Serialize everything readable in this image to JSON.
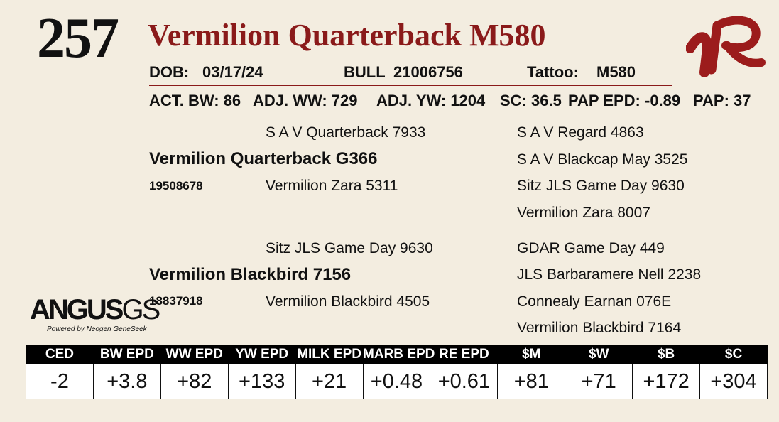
{
  "lot_number": "257",
  "animal_name": "Vermilion Quarterback M580",
  "info_row": {
    "dob_label": "DOB:",
    "dob_value": "03/17/24",
    "bull_label": "BULL",
    "registration": "21006756",
    "tattoo_label": "Tattoo:",
    "tattoo_value": "M580"
  },
  "stats_row": {
    "act_bw": "ACT. BW: 86",
    "adj_ww": "ADJ. WW: 729",
    "adj_yw": "ADJ. YW: 1204",
    "sc": "SC: 36.5",
    "pap_epd": "PAP EPD: -0.89",
    "pap": "PAP: 37"
  },
  "pedigree": {
    "sire": {
      "name": "Vermilion Quarterback G366",
      "reg": "19508678",
      "sire": "S A V Quarterback 7933",
      "dam": "Vermilion Zara 5311",
      "sire_sire": "S A V Regard 4863",
      "sire_dam": "S A V Blackcap May 3525",
      "dam_sire": "Sitz JLS Game Day 9630",
      "dam_dam": "Vermilion Zara 8007"
    },
    "dam": {
      "name": "Vermilion Blackbird 7156",
      "reg": "18837918",
      "sire": "Sitz JLS Game Day 9630",
      "dam": "Vermilion Blackbird 4505",
      "sire_sire": "GDAR Game Day 449",
      "sire_dam": "JLS Barbaramere Nell 2238",
      "dam_sire": "Connealy Earnan 076E",
      "dam_dam": "Vermilion Blackbird 7164"
    }
  },
  "logo": {
    "main": "ANGUS",
    "suffix": "GS",
    "tagline": "Powered by Neogen GeneSeek"
  },
  "epd_table": {
    "headers": [
      "CED",
      "BW EPD",
      "WW EPD",
      "YW EPD",
      "MILK EPD",
      "MARB EPD",
      "RE EPD",
      "$M",
      "$W",
      "$B",
      "$C"
    ],
    "values": [
      "-2",
      "+3.8",
      "+82",
      "+133",
      "+21",
      "+0.48",
      "+0.61",
      "+81",
      "+71",
      "+172",
      "+304"
    ]
  },
  "colors": {
    "accent": "#8a1a1a",
    "brand_mark": "#9c1c1c",
    "background": "#f3ede0"
  }
}
